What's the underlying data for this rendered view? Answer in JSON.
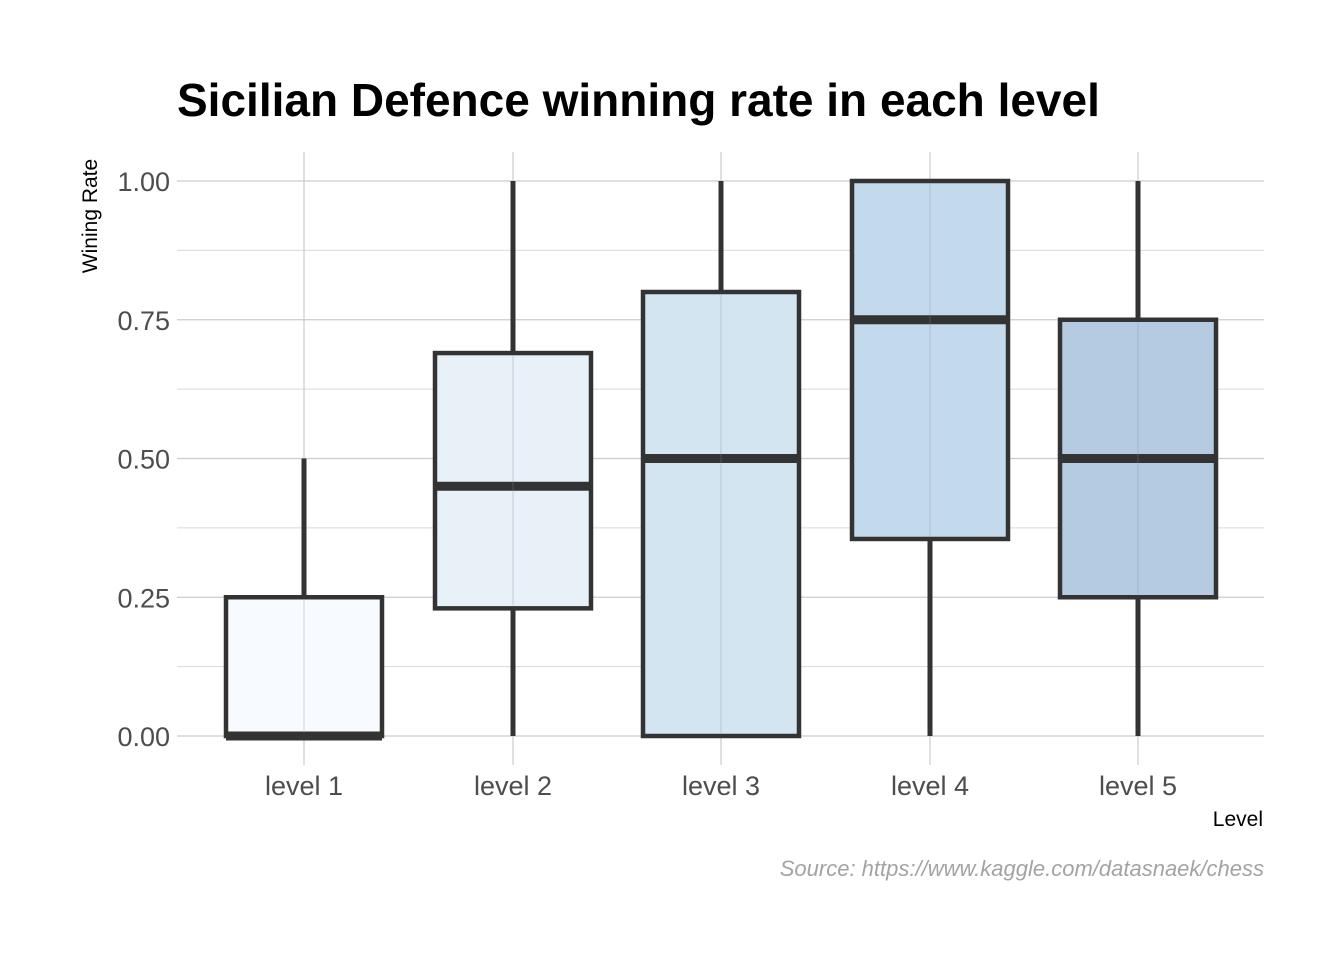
{
  "chart_data": {
    "type": "box",
    "title": "Sicilian Defence winning rate in each level",
    "xlabel": "Level",
    "ylabel": "Wining Rate",
    "caption": "Source: https://www.kaggle.com/datasnaek/chess",
    "ylim": [
      0,
      1
    ],
    "y_ticks": [
      0,
      0.25,
      0.5,
      0.75,
      1
    ],
    "y_tick_labels": [
      "0.00",
      "0.25",
      "0.50",
      "0.75",
      "1.00"
    ],
    "grid": true,
    "legend": "none",
    "categories": [
      "level 1",
      "level 2",
      "level 3",
      "level 4",
      "level 5"
    ],
    "boxes": [
      {
        "category": "level 1",
        "min": 0,
        "q1": 0,
        "median": 0,
        "q3": 0.25,
        "max": 0.5,
        "fill": "#f7fbff"
      },
      {
        "category": "level 2",
        "min": 0,
        "q1": 0.23,
        "median": 0.45,
        "q3": 0.69,
        "max": 1.0,
        "fill": "#e8f0f8"
      },
      {
        "category": "level 3",
        "min": 0,
        "q1": 0,
        "median": 0.5,
        "q3": 0.8,
        "max": 1.0,
        "fill": "#d3e5f1"
      },
      {
        "category": "level 4",
        "min": 0,
        "q1": 0.355,
        "median": 0.75,
        "q3": 1.0,
        "max": 1.0,
        "fill": "#c3d9ec"
      },
      {
        "category": "level 5",
        "min": 0,
        "q1": 0.25,
        "median": 0.5,
        "q3": 0.75,
        "max": 1.0,
        "fill": "#b4cbe2"
      }
    ],
    "colors": {
      "outline": "#333333",
      "grid": "#cccccc",
      "tick_text": "#4d4d4d",
      "caption_text": "#a3a3a3"
    }
  }
}
